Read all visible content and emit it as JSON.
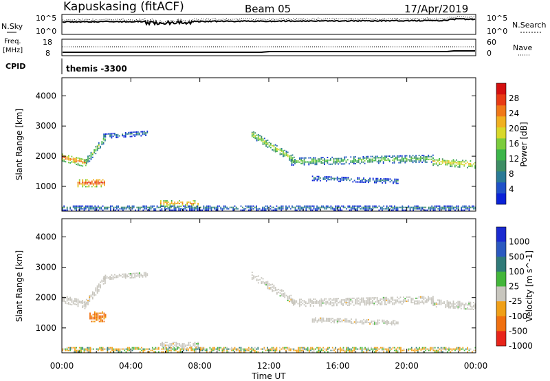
{
  "header": {
    "station": "Kapuskasing (fitACF)",
    "beam": "Beam 05",
    "date": "17/Apr/2019"
  },
  "top_panels": {
    "nsky_label": "N.Sky",
    "nsearch_label": "N.Search",
    "noise_ticks_left": [
      "10^5",
      "10^0"
    ],
    "noise_ticks_right": [
      "10^5",
      "10^0"
    ],
    "freq_label_top": "Freq.",
    "freq_label_unit": "[MHz]",
    "freq_ticks": [
      "18",
      "8"
    ],
    "nave_label": "Nave",
    "nave_ticks": [
      "60",
      "0"
    ],
    "cpid_label": "CPID",
    "cpid_text": "themis -3300"
  },
  "x_axis": {
    "label": "Time UT",
    "ticks": [
      "00:00",
      "04:00",
      "08:00",
      "12:00",
      "16:00",
      "20:00",
      "00:00"
    ]
  },
  "chart_data": [
    {
      "type": "heatmap",
      "title": "",
      "xlabel": "Time UT",
      "ylabel": "Slant Range [km]",
      "x_range_hours": [
        0,
        24
      ],
      "ylim_km": [
        180,
        4600
      ],
      "y_ticks": [
        "1000",
        "2000",
        "3000",
        "4000"
      ],
      "colorbar": {
        "label": "Power [dB]",
        "ticks": [
          "4",
          "8",
          "12",
          "16",
          "20",
          "24",
          "28"
        ],
        "colors": [
          "#0a22d8",
          "#1f51c8",
          "#2a7a96",
          "#3d8d64",
          "#3cb54a",
          "#7bcc3c",
          "#d8d82a",
          "#f0b020",
          "#f07818",
          "#e83a14",
          "#d40f0f"
        ]
      },
      "echo_regions": [
        {
          "name": "early-band",
          "t": [
            0.0,
            1.4
          ],
          "r_start": 1950,
          "r_end": 1750,
          "width": 260,
          "level": 8
        },
        {
          "name": "early-rise",
          "t": [
            1.3,
            2.5
          ],
          "r_start": 1750,
          "r_end": 2600,
          "width": 260,
          "level": 5
        },
        {
          "name": "early-upper",
          "t": [
            2.4,
            5.0
          ],
          "r_start": 2650,
          "r_end": 2750,
          "width": 160,
          "level": 3
        },
        {
          "name": "early-hotspot",
          "t": [
            0.9,
            2.5
          ],
          "r_start": 1100,
          "r_end": 1100,
          "width": 260,
          "level": 9
        },
        {
          "name": "morning-patch",
          "t": [
            5.7,
            7.9
          ],
          "r_start": 420,
          "r_end": 420,
          "width": 200,
          "level": 8
        },
        {
          "name": "near-range",
          "t": [
            0.0,
            24.0
          ],
          "r_start": 270,
          "r_end": 270,
          "width": 160,
          "level": 3
        },
        {
          "name": "afternoon-descent",
          "t": [
            11.0,
            13.5
          ],
          "r_start": 2700,
          "r_end": 1850,
          "width": 230,
          "level": 6
        },
        {
          "name": "afternoon-main",
          "t": [
            13.3,
            21.5
          ],
          "r_start": 1800,
          "r_end": 1900,
          "width": 230,
          "level": 5
        },
        {
          "name": "afternoon-lower",
          "t": [
            14.5,
            19.5
          ],
          "r_start": 1250,
          "r_end": 1150,
          "width": 150,
          "level": 3
        },
        {
          "name": "late-band",
          "t": [
            21.5,
            24.0
          ],
          "r_start": 1800,
          "r_end": 1700,
          "width": 240,
          "level": 7
        }
      ]
    },
    {
      "type": "heatmap",
      "title": "",
      "xlabel": "Time UT",
      "ylabel": "Slant Range [km]",
      "x_range_hours": [
        0,
        24
      ],
      "ylim_km": [
        180,
        4600
      ],
      "y_ticks": [
        "1000",
        "2000",
        "3000",
        "4000"
      ],
      "colorbar": {
        "label": "Velocity [m s^-1]",
        "ticks": [
          "1000",
          "500",
          "100",
          "25",
          "-25",
          "-100",
          "-500",
          "-1000"
        ],
        "colors": [
          "#1a2ad0",
          "#2b59c0",
          "#2f7a78",
          "#43b63a",
          "#c8c6be",
          "#f0a018",
          "#f07010",
          "#e8241a"
        ]
      },
      "echo_regions": [
        {
          "name": "early-band",
          "t": [
            0.0,
            1.4
          ],
          "r_start": 1950,
          "r_end": 1750,
          "width": 260,
          "level": 4
        },
        {
          "name": "early-rise",
          "t": [
            1.3,
            2.5
          ],
          "r_start": 1750,
          "r_end": 2600,
          "width": 260,
          "level": 4
        },
        {
          "name": "early-upper",
          "t": [
            2.4,
            5.0
          ],
          "r_start": 2650,
          "r_end": 2750,
          "width": 160,
          "level": 4
        },
        {
          "name": "early-hotspot",
          "t": [
            1.6,
            2.5
          ],
          "r_start": 1350,
          "r_end": 1350,
          "width": 320,
          "level": 6
        },
        {
          "name": "morning-patch",
          "t": [
            5.7,
            7.9
          ],
          "r_start": 420,
          "r_end": 420,
          "width": 200,
          "level": 4
        },
        {
          "name": "near-range",
          "t": [
            0.0,
            24.0
          ],
          "r_start": 270,
          "r_end": 270,
          "width": 160,
          "level": 5
        },
        {
          "name": "afternoon-descent",
          "t": [
            11.0,
            13.5
          ],
          "r_start": 2700,
          "r_end": 1850,
          "width": 230,
          "level": 4
        },
        {
          "name": "afternoon-main",
          "t": [
            13.3,
            21.5
          ],
          "r_start": 1800,
          "r_end": 1900,
          "width": 230,
          "level": 4
        },
        {
          "name": "afternoon-lower",
          "t": [
            14.5,
            19.5
          ],
          "r_start": 1250,
          "r_end": 1150,
          "width": 150,
          "level": 4
        },
        {
          "name": "late-band",
          "t": [
            21.5,
            24.0
          ],
          "r_start": 1800,
          "r_end": 1700,
          "width": 240,
          "level": 4
        }
      ]
    }
  ]
}
